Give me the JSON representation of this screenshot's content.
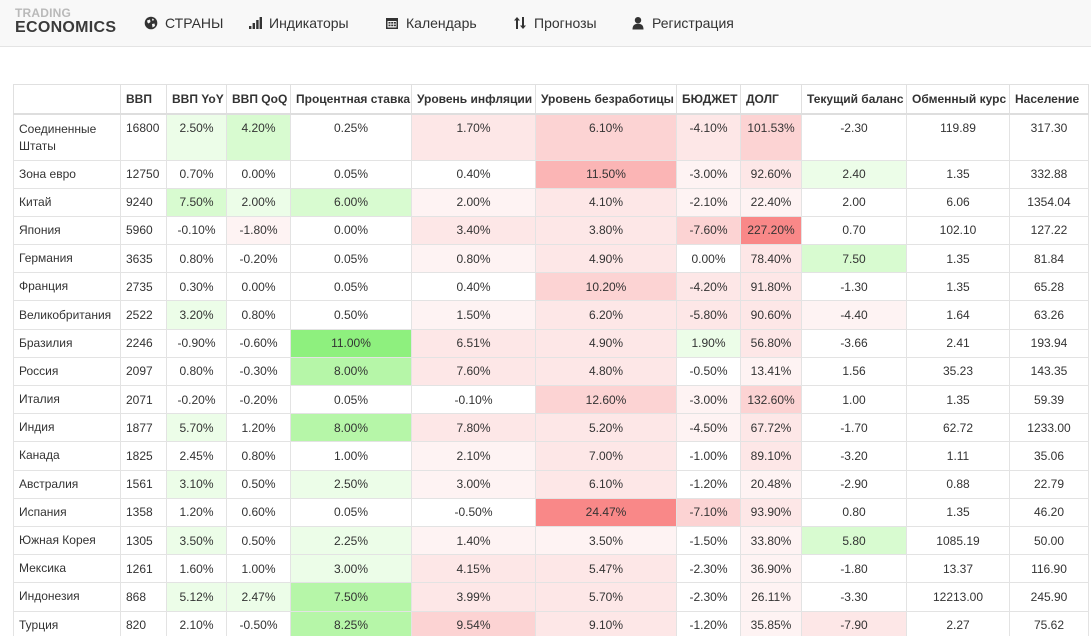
{
  "logo": {
    "line1": "TRADING",
    "line2": "ECONOMICS"
  },
  "nav": [
    {
      "label": "СТРАНЫ",
      "icon": "globe-icon"
    },
    {
      "label": "Индикаторы",
      "icon": "bar-chart-icon"
    },
    {
      "label": "Календарь",
      "icon": "calendar-icon"
    },
    {
      "label": "Прогнозы",
      "icon": "sort-arrows-icon"
    },
    {
      "label": "Регистрация",
      "icon": "user-icon"
    }
  ],
  "table": {
    "headers": [
      "",
      "ВВП",
      "ВВП YoY",
      "ВВП QoQ",
      "Процентная ставка",
      "Уровень инфляции",
      "Уровень безработицы",
      "БЮДЖЕТ",
      "ДОЛГ",
      "Текущий баланс",
      "Обменный курс",
      "Население"
    ],
    "rows": [
      [
        "Соединенные Штаты",
        "16800",
        "2.50%",
        "4.20%",
        "0.25%",
        "1.70%",
        "6.10%",
        "-4.10%",
        "101.53%",
        "-2.30",
        "119.89",
        "317.30"
      ],
      [
        "Зона евро",
        "12750",
        "0.70%",
        "0.00%",
        "0.05%",
        "0.40%",
        "11.50%",
        "-3.00%",
        "92.60%",
        "2.40",
        "1.35",
        "332.88"
      ],
      [
        "Китай",
        "9240",
        "7.50%",
        "2.00%",
        "6.00%",
        "2.00%",
        "4.10%",
        "-2.10%",
        "22.40%",
        "2.00",
        "6.06",
        "1354.04"
      ],
      [
        "Япония",
        "5960",
        "-0.10%",
        "-1.80%",
        "0.00%",
        "3.40%",
        "3.80%",
        "-7.60%",
        "227.20%",
        "0.70",
        "102.10",
        "127.22"
      ],
      [
        "Германия",
        "3635",
        "0.80%",
        "-0.20%",
        "0.05%",
        "0.80%",
        "4.90%",
        "0.00%",
        "78.40%",
        "7.50",
        "1.35",
        "81.84"
      ],
      [
        "Франция",
        "2735",
        "0.30%",
        "0.00%",
        "0.05%",
        "0.40%",
        "10.20%",
        "-4.20%",
        "91.80%",
        "-1.30",
        "1.35",
        "65.28"
      ],
      [
        "Великобритания",
        "2522",
        "3.20%",
        "0.80%",
        "0.50%",
        "1.50%",
        "6.20%",
        "-5.80%",
        "90.60%",
        "-4.40",
        "1.64",
        "63.26"
      ],
      [
        "Бразилия",
        "2246",
        "-0.90%",
        "-0.60%",
        "11.00%",
        "6.51%",
        "4.90%",
        "1.90%",
        "56.80%",
        "-3.66",
        "2.41",
        "193.94"
      ],
      [
        "Россия",
        "2097",
        "0.80%",
        "-0.30%",
        "8.00%",
        "7.60%",
        "4.80%",
        "-0.50%",
        "13.41%",
        "1.56",
        "35.23",
        "143.35"
      ],
      [
        "Италия",
        "2071",
        "-0.20%",
        "-0.20%",
        "0.05%",
        "-0.10%",
        "12.60%",
        "-3.00%",
        "132.60%",
        "1.00",
        "1.35",
        "59.39"
      ],
      [
        "Индия",
        "1877",
        "5.70%",
        "1.20%",
        "8.00%",
        "7.80%",
        "5.20%",
        "-4.50%",
        "67.72%",
        "-1.70",
        "62.72",
        "1233.00"
      ],
      [
        "Канада",
        "1825",
        "2.45%",
        "0.80%",
        "1.00%",
        "2.10%",
        "7.00%",
        "-1.00%",
        "89.10%",
        "-3.20",
        "1.11",
        "35.06"
      ],
      [
        "Австралия",
        "1561",
        "3.10%",
        "0.50%",
        "2.50%",
        "3.00%",
        "6.10%",
        "-1.20%",
        "20.48%",
        "-2.90",
        "0.88",
        "22.79"
      ],
      [
        "Испания",
        "1358",
        "1.20%",
        "0.60%",
        "0.05%",
        "-0.50%",
        "24.47%",
        "-7.10%",
        "93.90%",
        "0.80",
        "1.35",
        "46.20"
      ],
      [
        "Южная Корея",
        "1305",
        "3.50%",
        "0.50%",
        "2.25%",
        "1.40%",
        "3.50%",
        "-1.50%",
        "33.80%",
        "5.80",
        "1085.19",
        "50.00"
      ],
      [
        "Мексика",
        "1261",
        "1.60%",
        "1.00%",
        "3.00%",
        "4.15%",
        "5.47%",
        "-2.30%",
        "36.90%",
        "-1.80",
        "13.37",
        "116.90"
      ],
      [
        "Индонезия",
        "868",
        "5.12%",
        "2.47%",
        "7.50%",
        "3.99%",
        "5.70%",
        "-2.30%",
        "26.11%",
        "-3.30",
        "12213.00",
        "245.90"
      ],
      [
        "Турция",
        "820",
        "2.10%",
        "-0.50%",
        "8.25%",
        "9.54%",
        "9.10%",
        "-1.20%",
        "35.85%",
        "-7.90",
        "2.27",
        "75.62"
      ]
    ]
  },
  "colors": {
    "green_strong": "#8ef07e",
    "green_mid": "#b6f6a8",
    "green_light": "#d8fbd0",
    "green_faint": "#ecfde8",
    "red_strong": "#f98888",
    "red_mid": "#fbb5b5",
    "red_light": "#fcd3d3",
    "red_faint": "#fde7e7",
    "red_pale": "#fef3f3"
  }
}
